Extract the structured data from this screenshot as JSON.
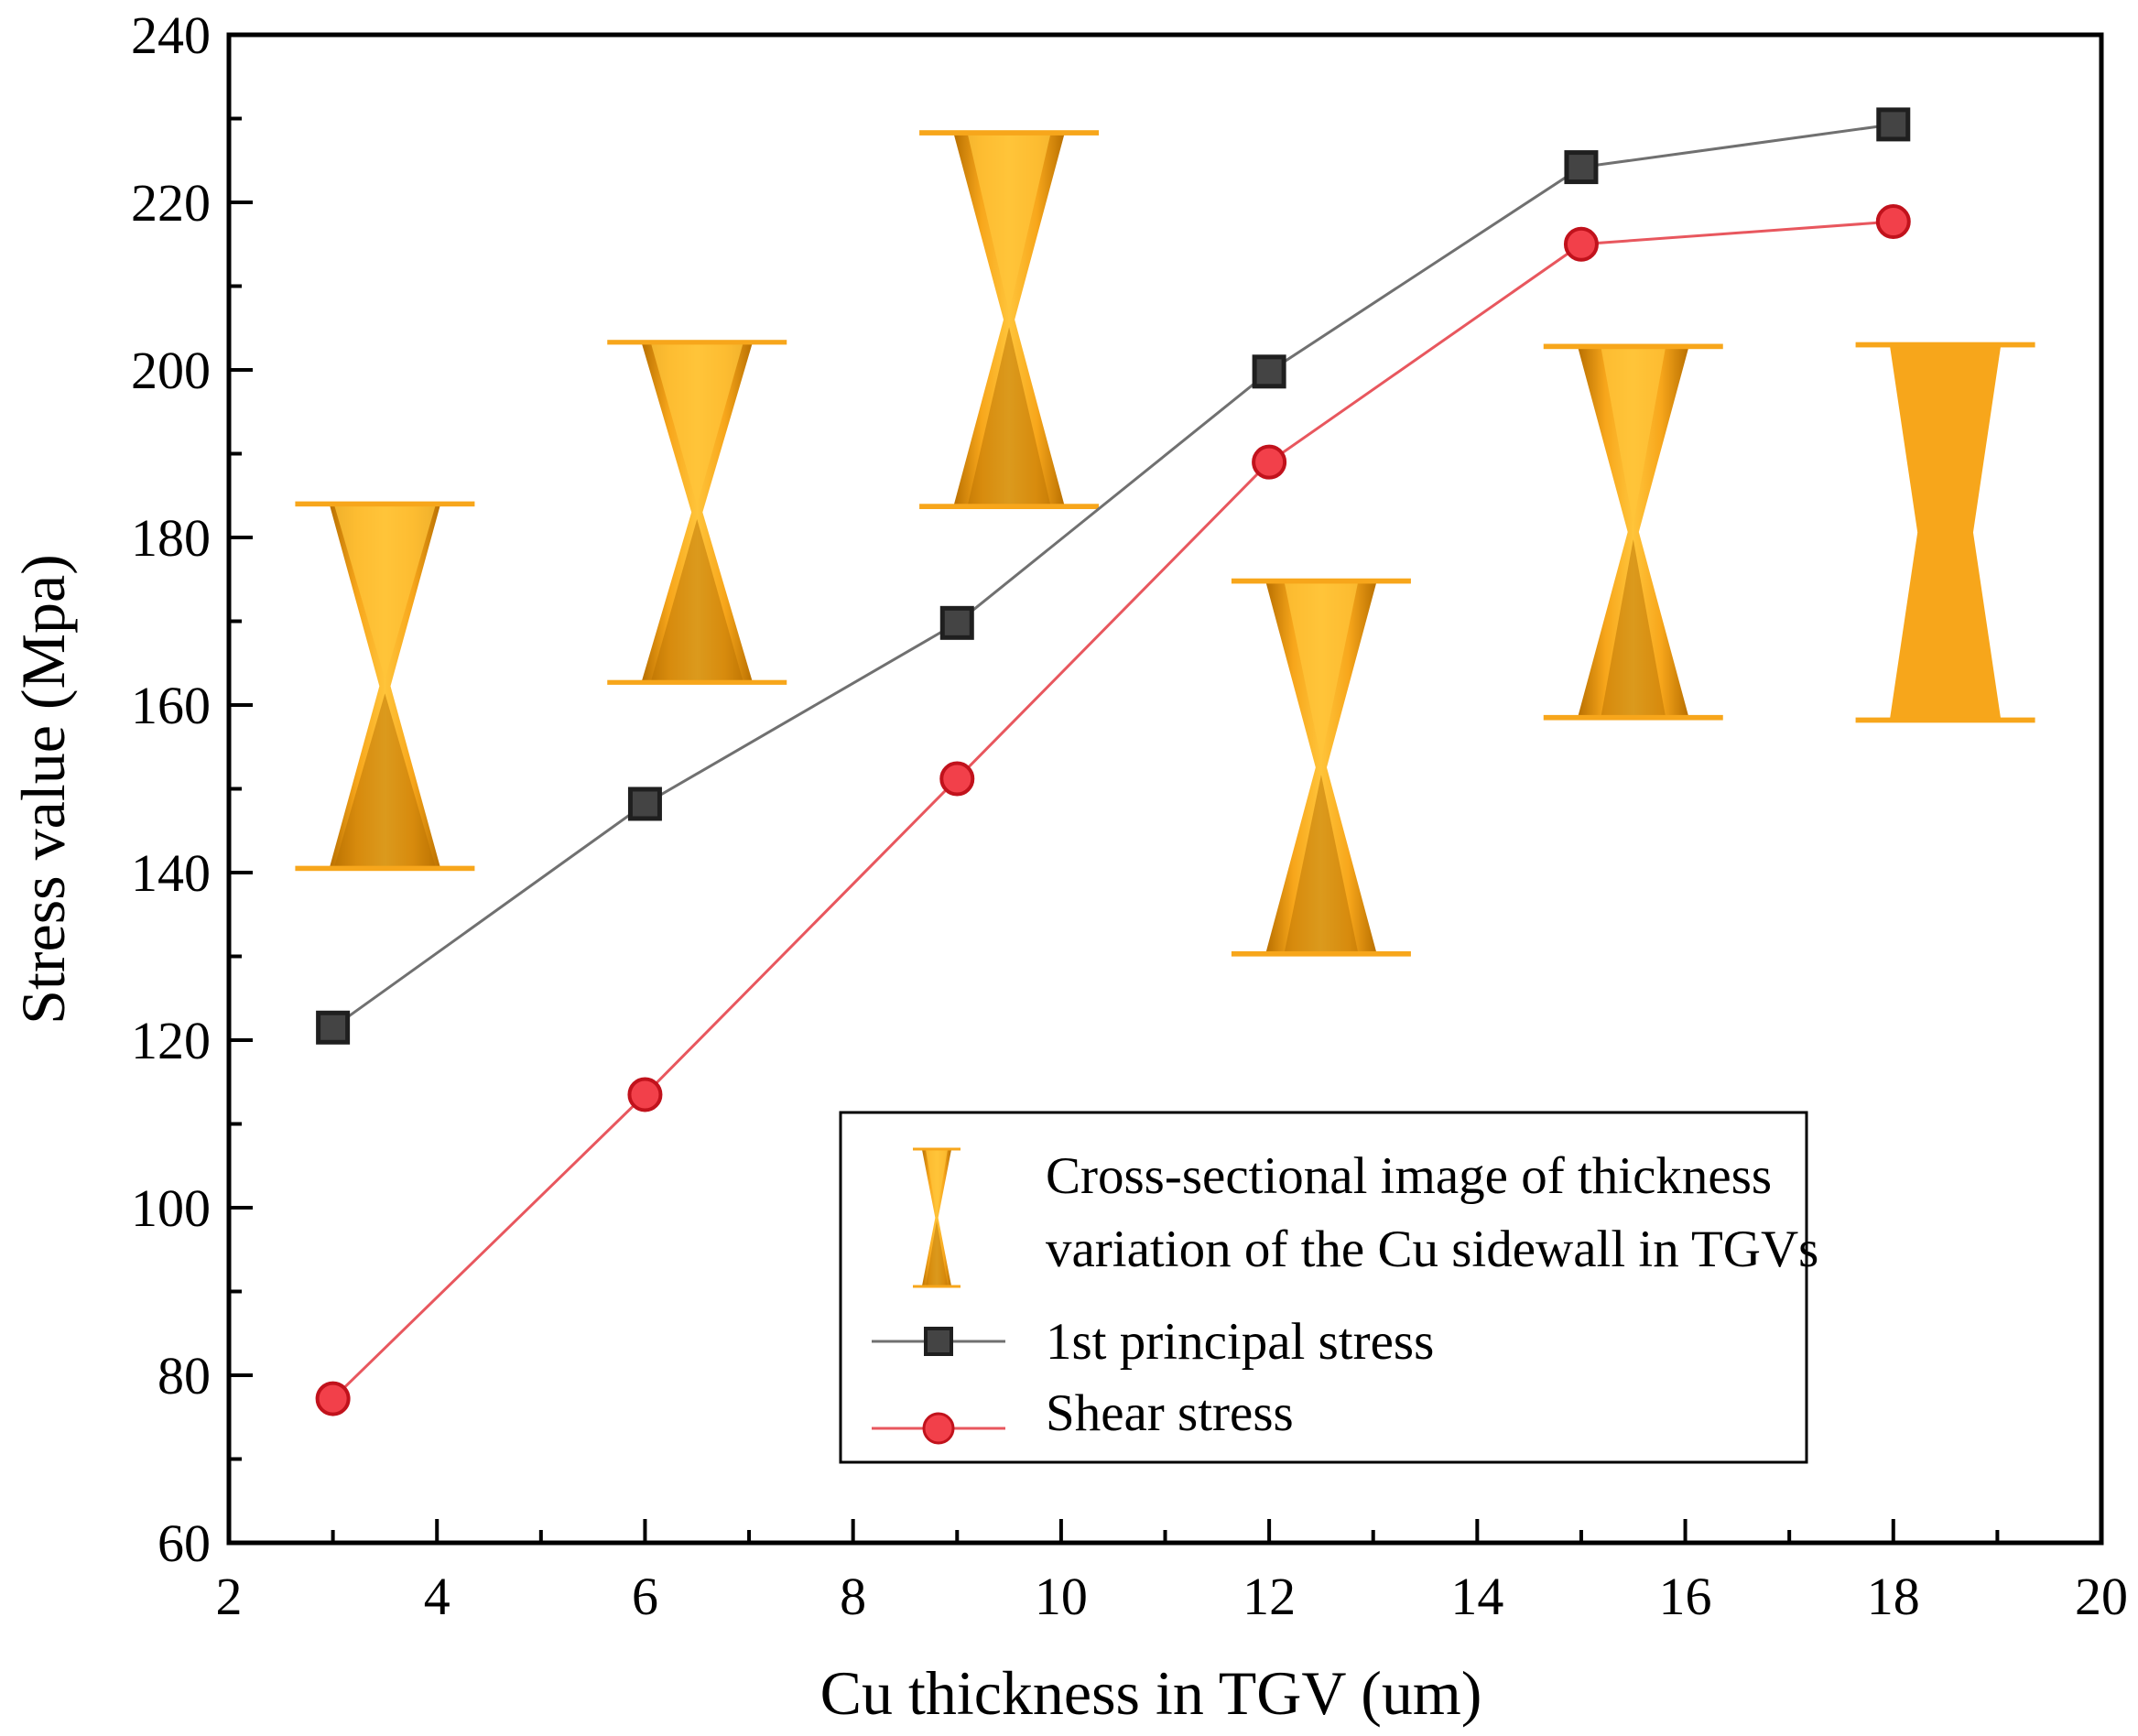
{
  "chart_data": {
    "type": "line",
    "title": "",
    "xlabel": "Cu thickness in TGV (um)",
    "ylabel": "Stress value (Mpa)",
    "xlim": [
      2,
      20
    ],
    "ylim": [
      60,
      240
    ],
    "xticks": [
      2,
      4,
      6,
      8,
      10,
      12,
      14,
      16,
      18,
      20
    ],
    "yticks": [
      60,
      80,
      100,
      120,
      140,
      160,
      180,
      200,
      220,
      240
    ],
    "grid": false,
    "legend_position": "bottom-right",
    "x": [
      3,
      6,
      9,
      12,
      15,
      18
    ],
    "series": [
      {
        "name": "1st principal stress",
        "marker": "square",
        "color": "#1f1f1f",
        "line_color": "#707070",
        "values": [
          121.5,
          148.2,
          169.8,
          199.8,
          224.2,
          229.3
        ]
      },
      {
        "name": "Shear stress",
        "marker": "circle",
        "color": "#e8202a",
        "line_color": "#e8575e",
        "values": [
          77.2,
          113.5,
          151.2,
          189,
          215,
          217.7
        ]
      }
    ],
    "legend_note": "Cross-sectional image of thickness variation of the Cu sidewall in TGVs",
    "insets": [
      {
        "x": 3.5,
        "y_top": 184,
        "y_bottom": 140.5,
        "thickness": 3
      },
      {
        "x": 6.5,
        "y_top": 203.3,
        "y_bottom": 162.7,
        "thickness": 6
      },
      {
        "x": 9.5,
        "y_top": 228.3,
        "y_bottom": 183.7,
        "thickness": 9
      },
      {
        "x": 12.5,
        "y_top": 174.8,
        "y_bottom": 130.3,
        "thickness": 12
      },
      {
        "x": 15.5,
        "y_top": 202.8,
        "y_bottom": 158.5,
        "thickness": 15
      },
      {
        "x": 18.5,
        "y_top": 203,
        "y_bottom": 158.2,
        "thickness": 18
      }
    ]
  },
  "colors": {
    "copper_light": "#ffc43a",
    "copper": "#f7a61b",
    "copper_dark": "#b86f00"
  }
}
